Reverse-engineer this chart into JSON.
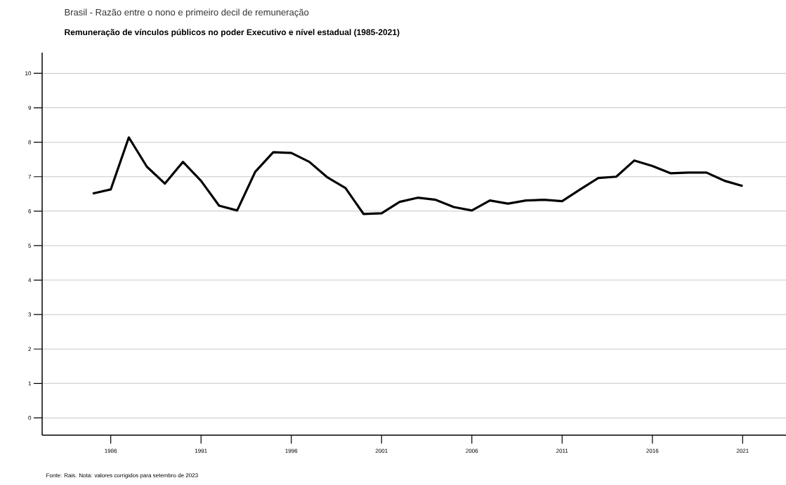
{
  "chart_data": {
    "type": "line",
    "title": "Brasil - Razão entre o nono e primeiro decil de remuneração",
    "subtitle": "Remuneração de vínculos públicos no poder Executivo e nível estadual (1985-2021)",
    "x": [
      1985,
      1986,
      1987,
      1988,
      1989,
      1990,
      1991,
      1992,
      1993,
      1994,
      1995,
      1996,
      1997,
      1998,
      1999,
      2000,
      2001,
      2002,
      2003,
      2004,
      2005,
      2006,
      2007,
      2008,
      2009,
      2010,
      2011,
      2012,
      2013,
      2014,
      2015,
      2016,
      2017,
      2018,
      2019,
      2020,
      2021
    ],
    "series": [
      {
        "color": "#000000",
        "values": [
          6.51,
          6.63,
          8.14,
          7.29,
          6.8,
          7.43,
          6.88,
          6.16,
          6.02,
          7.14,
          7.71,
          7.69,
          7.43,
          6.98,
          6.67,
          5.92,
          5.94,
          6.27,
          6.39,
          6.33,
          6.12,
          6.02,
          6.31,
          6.22,
          6.31,
          6.33,
          6.29,
          6.63,
          6.96,
          7.0,
          7.47,
          7.31,
          7.1,
          7.12,
          7.12,
          6.88,
          6.73
        ]
      }
    ],
    "xlim": [
      1982.2,
      2023.4
    ],
    "ylim": [
      -0.5,
      10.6
    ],
    "xticks": [
      1986,
      1991,
      1996,
      2001,
      2006,
      2011,
      2016,
      2021
    ],
    "yticks": [
      0,
      1,
      2,
      3,
      4,
      5,
      6,
      7,
      8,
      9,
      10
    ],
    "grid": "y",
    "marker": "none",
    "line_style": "solid",
    "annotations": [
      "Fonte: Rais. Nota: valores corrigidos para setembro de 2023"
    ]
  }
}
